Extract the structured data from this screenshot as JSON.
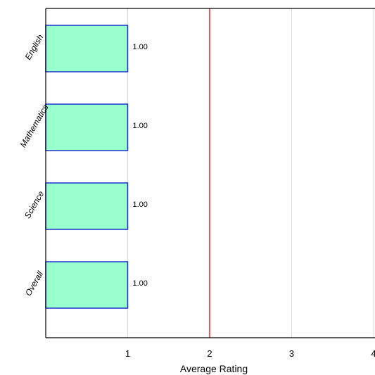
{
  "chart_data": {
    "type": "bar",
    "orientation": "horizontal",
    "categories": [
      "English",
      "Mathematics",
      "Science",
      "Overall"
    ],
    "values": [
      1.0,
      1.0,
      1.0,
      1.0
    ],
    "data_labels": [
      "1.00",
      "1.00",
      "1.00",
      "1.00"
    ],
    "xlabel": "Average Rating",
    "xlim": [
      0,
      4
    ],
    "xticks": [
      1,
      2,
      3,
      4
    ],
    "xtick_labels": [
      "1",
      "2",
      "3",
      "4"
    ],
    "reference_line": {
      "x": 2,
      "color": "#d40000"
    },
    "grid": "vertical",
    "legend": "none",
    "bar_fill": "#99ffcc",
    "bar_stroke": "#1a33cc",
    "gridline_color": "#d9d9d9",
    "axis_color": "#000000"
  }
}
